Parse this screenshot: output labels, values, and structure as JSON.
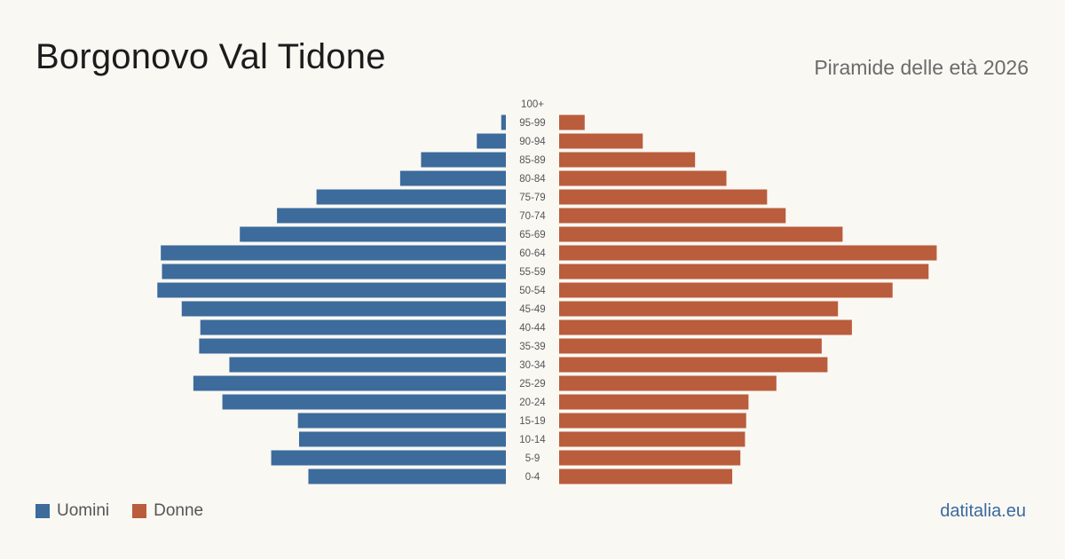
{
  "title": "Borgonovo Val Tidone",
  "subtitle": "Piramide delle età 2026",
  "source": "datitalia.eu",
  "colors": {
    "men": "#3c6b9c",
    "women": "#b95d3d",
    "background": "#faf8f3"
  },
  "legend": {
    "men_label": "Uomini",
    "women_label": "Donne"
  },
  "chart_data": {
    "type": "bar",
    "orientation": "horizontal-pyramid",
    "categories": [
      "100+",
      "95-99",
      "90-94",
      "85-89",
      "80-84",
      "75-79",
      "70-74",
      "65-69",
      "60-64",
      "55-59",
      "50-54",
      "45-49",
      "40-44",
      "35-39",
      "30-34",
      "25-29",
      "20-24",
      "15-19",
      "10-14",
      "5-9",
      "0-4"
    ],
    "series": [
      {
        "name": "Uomini",
        "side": "left",
        "values": [
          0,
          4,
          25,
          73,
          91,
          163,
          197,
          229,
          297,
          296,
          300,
          279,
          263,
          264,
          238,
          269,
          244,
          179,
          178,
          202,
          170
        ]
      },
      {
        "name": "Donne",
        "side": "right",
        "values": [
          0,
          22,
          72,
          117,
          144,
          179,
          195,
          244,
          325,
          318,
          287,
          240,
          252,
          226,
          231,
          187,
          163,
          161,
          160,
          156,
          149
        ]
      }
    ],
    "xlim": [
      0,
      330
    ],
    "grid": false,
    "legend_position": "bottom-left"
  }
}
